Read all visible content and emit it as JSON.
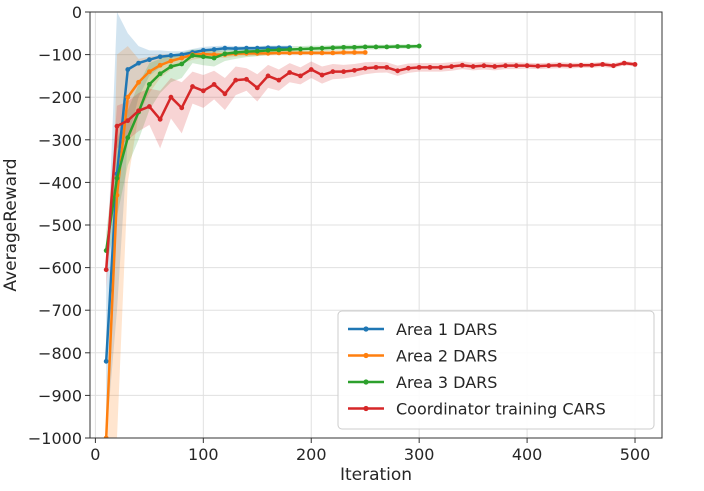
{
  "chart_data": {
    "type": "line",
    "title": "",
    "xlabel": "Iteration",
    "ylabel": "AverageReward",
    "xlim": [
      -5,
      525
    ],
    "ylim": [
      -1000,
      0
    ],
    "xticks": [
      0,
      100,
      200,
      300,
      400,
      500
    ],
    "yticks": [
      0,
      -100,
      -200,
      -300,
      -400,
      -500,
      -600,
      -700,
      -800,
      -900,
      -1000
    ],
    "xtick_labels": [
      "0",
      "100",
      "200",
      "300",
      "400",
      "500"
    ],
    "ytick_labels": [
      "0",
      "−100",
      "−200",
      "−300",
      "−400",
      "−500",
      "−600",
      "−700",
      "−800",
      "−900",
      "−1000"
    ],
    "grid": true,
    "legend_position": "lower-right",
    "series": [
      {
        "name": "Area 1 DARS",
        "color": "#1f77b4",
        "x": [
          10,
          20,
          30,
          40,
          50,
          60,
          70,
          80,
          90,
          100,
          110,
          120,
          130,
          140,
          150,
          160,
          170,
          180
        ],
        "y": [
          -820,
          -380,
          -135,
          -120,
          -112,
          -105,
          -102,
          -100,
          -95,
          -90,
          -88,
          -85,
          -86,
          -85,
          -85,
          -84,
          -84,
          -84
        ],
        "lower": [
          -1000,
          -700,
          -300,
          -200,
          -150,
          -130,
          -115,
          -110,
          -105,
          -100,
          -96,
          -92,
          -92,
          -90,
          -90,
          -89,
          -88,
          -88
        ],
        "upper": [
          -650,
          0,
          -50,
          -80,
          -90,
          -90,
          -92,
          -92,
          -87,
          -82,
          -80,
          -79,
          -80,
          -80,
          -80,
          -79,
          -79,
          -79
        ]
      },
      {
        "name": "Area 2 DARS",
        "color": "#ff7f0e",
        "x": [
          10,
          20,
          30,
          40,
          50,
          60,
          70,
          80,
          90,
          100,
          110,
          120,
          130,
          140,
          150,
          160,
          170,
          180,
          190,
          200,
          210,
          220,
          230,
          240,
          250
        ],
        "y": [
          -1000,
          -430,
          -200,
          -165,
          -140,
          -125,
          -115,
          -108,
          -100,
          -99,
          -100,
          -100,
          -98,
          -97,
          -97,
          -97,
          -96,
          -96,
          -96,
          -96,
          -96,
          -96,
          -95,
          -95,
          -95
        ],
        "lower": [
          -1000,
          -1000,
          -400,
          -240,
          -190,
          -155,
          -135,
          -122,
          -112,
          -108,
          -108,
          -108,
          -105,
          -104,
          -103,
          -102,
          -101,
          -101,
          -101,
          -101,
          -101,
          -101,
          -100,
          -100,
          -100
        ],
        "upper": [
          -1000,
          -100,
          -80,
          -110,
          -105,
          -100,
          -100,
          -98,
          -90,
          -90,
          -92,
          -93,
          -91,
          -91,
          -91,
          -91,
          -91,
          -91,
          -91,
          -91,
          -91,
          -91,
          -90,
          -90,
          -90
        ]
      },
      {
        "name": "Area 3 DARS",
        "color": "#2ca02c",
        "x": [
          10,
          20,
          30,
          40,
          50,
          60,
          70,
          80,
          90,
          100,
          110,
          120,
          130,
          140,
          150,
          160,
          170,
          180,
          190,
          200,
          210,
          220,
          230,
          240,
          250,
          260,
          270,
          280,
          290,
          300
        ],
        "y": [
          -560,
          -390,
          -295,
          -235,
          -170,
          -145,
          -128,
          -122,
          -102,
          -105,
          -108,
          -98,
          -95,
          -93,
          -92,
          -90,
          -89,
          -88,
          -87,
          -86,
          -85,
          -84,
          -83,
          -83,
          -82,
          -82,
          -82,
          -81,
          -81,
          -80
        ],
        "lower": [
          -600,
          -480,
          -360,
          -300,
          -230,
          -190,
          -165,
          -155,
          -120,
          -125,
          -128,
          -115,
          -110,
          -106,
          -104,
          -101,
          -99,
          -97,
          -95,
          -94,
          -92,
          -91,
          -90,
          -89,
          -88,
          -88,
          -87,
          -86,
          -86,
          -85
        ],
        "upper": [
          -520,
          -300,
          -230,
          -170,
          -120,
          -110,
          -100,
          -96,
          -88,
          -88,
          -92,
          -85,
          -83,
          -82,
          -82,
          -80,
          -80,
          -80,
          -80,
          -79,
          -79,
          -78,
          -77,
          -77,
          -77,
          -77,
          -77,
          -76,
          -76,
          -76
        ]
      },
      {
        "name": "Coordinator training CARS",
        "color": "#d62728",
        "x": [
          10,
          20,
          30,
          40,
          50,
          60,
          70,
          80,
          90,
          100,
          110,
          120,
          130,
          140,
          150,
          160,
          170,
          180,
          190,
          200,
          210,
          220,
          230,
          240,
          250,
          260,
          270,
          280,
          290,
          300,
          310,
          320,
          330,
          340,
          350,
          360,
          370,
          380,
          390,
          400,
          410,
          420,
          430,
          440,
          450,
          460,
          470,
          480,
          490,
          500
        ],
        "y": [
          -605,
          -268,
          -255,
          -232,
          -222,
          -252,
          -200,
          -225,
          -175,
          -185,
          -170,
          -192,
          -160,
          -158,
          -178,
          -150,
          -160,
          -142,
          -150,
          -135,
          -148,
          -140,
          -140,
          -137,
          -132,
          -130,
          -130,
          -138,
          -132,
          -130,
          -130,
          -130,
          -128,
          -125,
          -128,
          -126,
          -128,
          -126,
          -126,
          -126,
          -127,
          -126,
          -125,
          -126,
          -125,
          -125,
          -123,
          -126,
          -120,
          -123
        ],
        "lower": [
          -650,
          -320,
          -300,
          -280,
          -265,
          -320,
          -250,
          -285,
          -215,
          -225,
          -205,
          -230,
          -195,
          -185,
          -210,
          -178,
          -185,
          -165,
          -170,
          -155,
          -168,
          -158,
          -156,
          -152,
          -146,
          -143,
          -142,
          -150,
          -143,
          -140,
          -140,
          -140,
          -138,
          -134,
          -137,
          -135,
          -137,
          -134,
          -134,
          -133,
          -134,
          -133,
          -132,
          -133,
          -131,
          -131,
          -129,
          -132,
          -125,
          -128
        ],
        "upper": [
          -560,
          -220,
          -210,
          -190,
          -180,
          -185,
          -155,
          -165,
          -140,
          -148,
          -138,
          -155,
          -128,
          -132,
          -146,
          -124,
          -135,
          -120,
          -130,
          -116,
          -128,
          -122,
          -124,
          -122,
          -118,
          -117,
          -118,
          -126,
          -121,
          -120,
          -120,
          -120,
          -118,
          -116,
          -119,
          -117,
          -119,
          -118,
          -118,
          -119,
          -120,
          -119,
          -118,
          -119,
          -119,
          -119,
          -117,
          -120,
          -115,
          -118
        ]
      }
    ]
  }
}
